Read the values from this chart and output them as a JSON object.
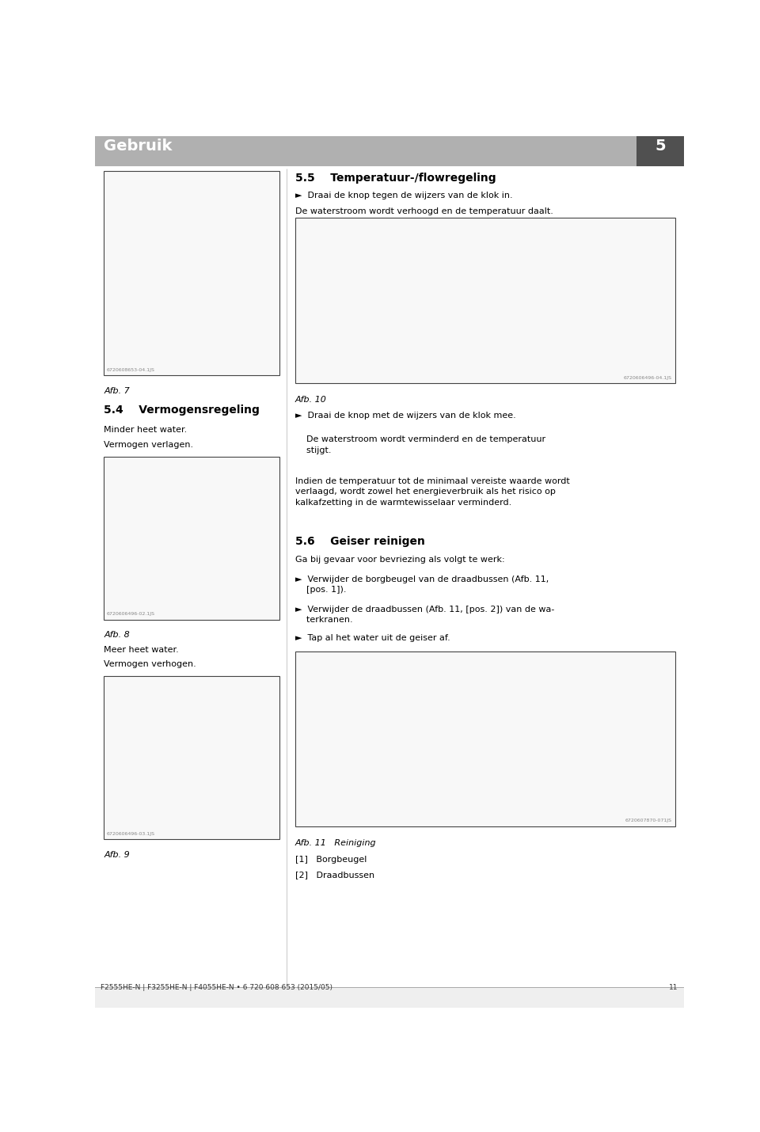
{
  "bg_color": "#ffffff",
  "header_bg": "#b0b0b0",
  "header_text": "Gebruik",
  "header_num": "5",
  "footer_text": "F2555HE-N | F3255HE-N | F4055HE-N • 6 720 608 653 (2015/05)",
  "footer_num": "11",
  "section_54_title": "5.4    Vermogensregeling",
  "section_54_sub1": "Minder heet water.",
  "section_54_sub2": "Vermogen verlagen.",
  "section_54_sub3": "Meer heet water.",
  "section_54_sub4": "Vermogen verhogen.",
  "fig7_label": "Afb. 7",
  "fig8_label": "Afb. 8",
  "fig9_label": "Afb. 9",
  "fig10_label": "Afb. 10",
  "fig11_label": "Afb. 11   Reiniging",
  "section_55_title": "5.5    Temperatuur-/flowregeling",
  "section_55_b1": "►  Draai de knop tegen de wijzers van de klok in.",
  "section_55_t1": "De waterstroom wordt verhoogd en de temperatuur daalt.",
  "section_55_b2": "►  Draai de knop met de wijzers van de klok mee.",
  "section_55_t2": "    De waterstroom wordt verminderd en de temperatuur\n    stijgt.",
  "section_55_t3": "Indien de temperatuur tot de minimaal vereiste waarde wordt\nverlaagd, wordt zowel het energieverbruik als het risico op\nkalkafzetting in de warmtewisselaar verminderd.",
  "section_56_title": "5.6    Geiser reinigen",
  "section_56_intro": "Ga bij gevaar voor bevriezing als volgt te werk:",
  "section_56_b1": "►  Verwijder de borgbeugel van de draadbussen (Afb. 11,\n    [pos. 1]).",
  "section_56_b2": "►  Verwijder de draadbussen (Afb. 11, [pos. 2]) van de wa-\n    terkranen.",
  "section_56_b3": "►  Tap al het water uit de geiser af.",
  "ref1_label": "[1]   Borgbeugel",
  "ref2_label": "[2]   Draadbussen",
  "fig7_code": "6720608653-04.1JS",
  "fig8_code": "6720606496-02.1JS",
  "fig9_code": "6720606496-03.1JS",
  "fig10_code": "6720606496-04.1JS",
  "fig11_code": "6720607870-071JS"
}
